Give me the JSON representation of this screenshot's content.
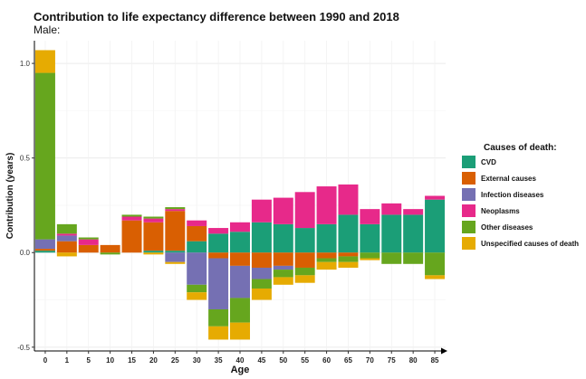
{
  "chart_data": {
    "type": "bar",
    "stacked": true,
    "title": "Contribution to life expectancy difference between 1990 and 2018",
    "subtitle": "Male:",
    "xlabel": "Age",
    "ylabel": "Contribution (years)",
    "categories": [
      "0",
      "1",
      "5",
      "10",
      "15",
      "20",
      "25",
      "30",
      "35",
      "40",
      "45",
      "50",
      "55",
      "60",
      "65",
      "70",
      "75",
      "80",
      "85"
    ],
    "ylim": [
      -0.52,
      1.12
    ],
    "yticks": [
      -0.5,
      0.0,
      0.5,
      1.0
    ],
    "ytick_labels": [
      "-0.5",
      "0.0",
      "0.5",
      "1.0"
    ],
    "grid": true,
    "legend": {
      "title": "Causes of death:",
      "position": "right"
    },
    "series": [
      {
        "name": "CVD",
        "color": "#1b9e77",
        "values": [
          0.01,
          0.0,
          0.0,
          0.0,
          0.0,
          0.01,
          0.01,
          0.06,
          0.1,
          0.11,
          0.16,
          0.15,
          0.13,
          0.15,
          0.2,
          0.15,
          0.2,
          0.2,
          0.28
        ]
      },
      {
        "name": "External causes",
        "color": "#d95f02",
        "values": [
          0.01,
          0.06,
          0.04,
          0.04,
          0.17,
          0.15,
          0.21,
          0.08,
          -0.03,
          -0.07,
          -0.08,
          -0.07,
          -0.08,
          -0.03,
          -0.02,
          0.0,
          0.0,
          0.0,
          0.0
        ]
      },
      {
        "name": "Infection diseases",
        "color": "#7570b3",
        "values": [
          0.05,
          0.03,
          0.0,
          0.0,
          0.0,
          0.0,
          -0.05,
          -0.17,
          -0.27,
          -0.17,
          -0.06,
          -0.02,
          0.0,
          0.0,
          0.0,
          0.0,
          0.0,
          0.0,
          0.0
        ]
      },
      {
        "name": "Neoplasms",
        "color": "#e7298a",
        "values": [
          0.0,
          0.01,
          0.03,
          0.0,
          0.02,
          0.02,
          0.01,
          0.03,
          0.03,
          0.05,
          0.12,
          0.14,
          0.19,
          0.2,
          0.16,
          0.08,
          0.06,
          0.03,
          0.02
        ]
      },
      {
        "name": "Other diseases",
        "color": "#66a61e",
        "values": [
          0.88,
          0.05,
          0.01,
          -0.01,
          0.01,
          0.01,
          0.01,
          -0.04,
          -0.09,
          -0.13,
          -0.05,
          -0.04,
          -0.04,
          -0.02,
          -0.03,
          -0.03,
          -0.06,
          -0.06,
          -0.12
        ]
      },
      {
        "name": "Unspecified causes of death",
        "color": "#e6ab02",
        "values": [
          0.12,
          -0.02,
          0.0,
          0.0,
          0.0,
          -0.01,
          -0.01,
          -0.04,
          -0.07,
          -0.09,
          -0.06,
          -0.04,
          -0.04,
          -0.04,
          -0.03,
          -0.01,
          0.0,
          0.0,
          -0.02
        ]
      }
    ]
  }
}
